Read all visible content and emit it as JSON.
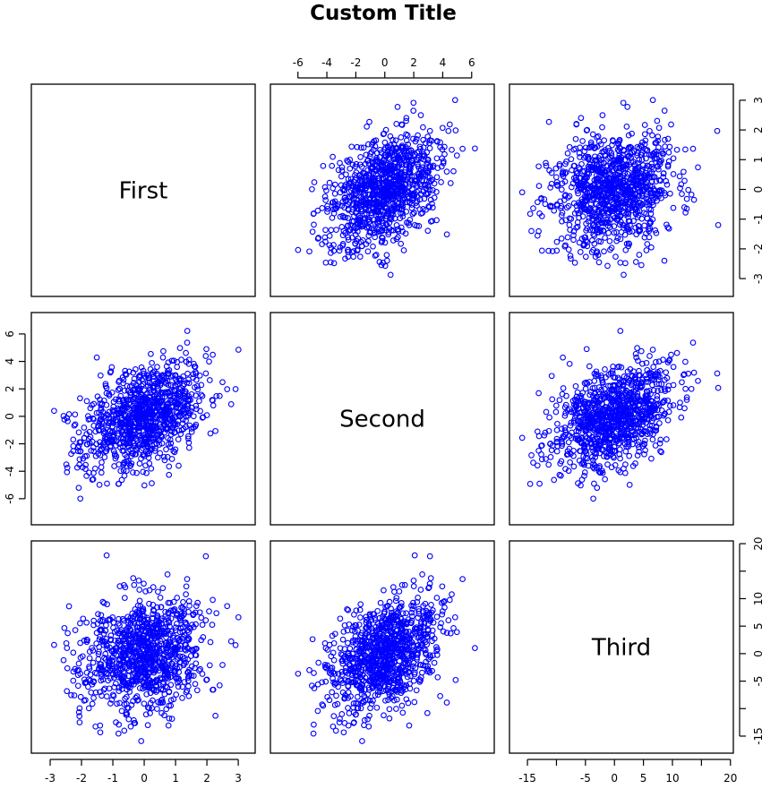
{
  "title": "Custom Title",
  "chart_data": {
    "type": "scatter",
    "kind": "pairs-scatterplot-matrix",
    "title": "Custom Title",
    "variables": [
      "First",
      "Second",
      "Third"
    ],
    "n_points": 1000,
    "point_style": {
      "shape": "open-circle",
      "color": "#0000ff",
      "radius": 2.8
    },
    "approx_distribution": {
      "First": {
        "mean": 0,
        "sd": 1
      },
      "Second": {
        "mean": 0,
        "sd": 2
      },
      "Third": {
        "mean": 0,
        "sd": 5
      },
      "correlations": {
        "First-Second": 0.4,
        "First-Third": 0.15,
        "Second-Third": 0.4
      }
    },
    "axes": {
      "First": {
        "range": [
          -3.6,
          3.54
        ],
        "ticks": [
          -3,
          -2,
          -1,
          0,
          1,
          2,
          3
        ],
        "tick_labels": [
          "-3",
          "-2",
          "-1",
          "0",
          "1",
          "2",
          "3"
        ]
      },
      "Second": {
        "range": [
          -7.9,
          7.56
        ],
        "ticks": [
          -6,
          -4,
          -2,
          0,
          2,
          4,
          6
        ],
        "tick_labels": [
          "-6",
          "-4",
          "-2",
          "0",
          "2",
          "4",
          "6"
        ]
      },
      "Third": {
        "range": [
          -18.1,
          20.5
        ],
        "ticks": [
          -15,
          -10,
          -5,
          0,
          5,
          10,
          15,
          20
        ],
        "tick_labels": [
          "-15",
          "",
          "-5",
          "0",
          "5",
          "10",
          "",
          "20"
        ]
      }
    },
    "axis_placement": {
      "top": "Second",
      "right_row1": "First",
      "left_row2": "Second",
      "right_row3": "Third",
      "bottom_col1": "First",
      "bottom_col3": "Third"
    },
    "grid": false,
    "legend": null
  }
}
